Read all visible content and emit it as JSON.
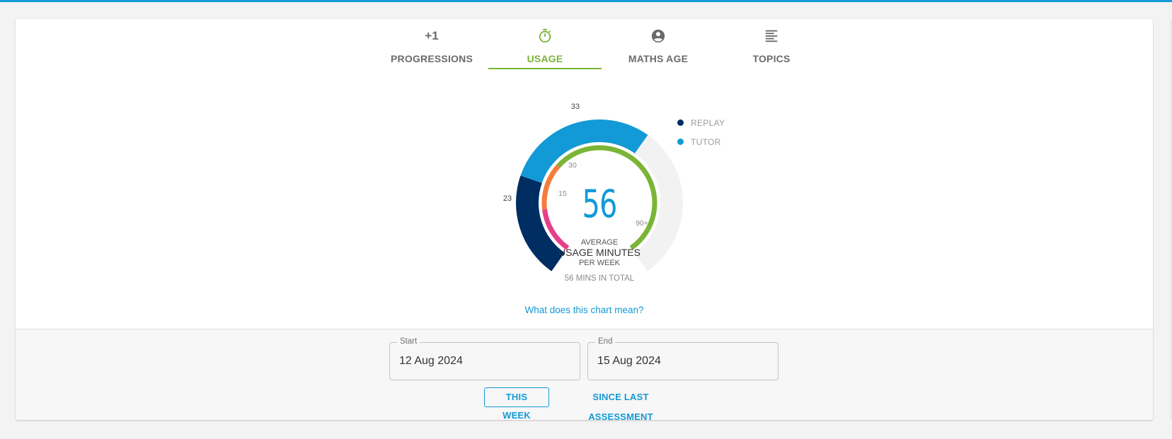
{
  "tabs": [
    {
      "label": "PROGRESSIONS",
      "icon": "plus-one-text",
      "icon_text": "+1",
      "active": false
    },
    {
      "label": "USAGE",
      "icon": "stopwatch-icon",
      "active": true
    },
    {
      "label": "MATHS AGE",
      "icon": "account-circle-icon",
      "active": false
    },
    {
      "label": "TOPICS",
      "icon": "text-lines-icon",
      "active": false
    }
  ],
  "gauge": {
    "center_value": "56",
    "caption_top": "AVERAGE",
    "caption_main": "USAGE MINUTES",
    "caption_sub": "PER WEEK",
    "total_text": "56 MINS IN TOTAL",
    "outer_labels": {
      "replay": "23",
      "tutor": "33"
    },
    "inner_labels": {
      "a": "15",
      "b": "30",
      "c": "90+"
    },
    "segments": {
      "replay_minutes": 23,
      "tutor_minutes": 33,
      "scale_max": 90
    }
  },
  "legend": [
    {
      "label": "REPLAY",
      "color": "#002d62"
    },
    {
      "label": "TUTOR",
      "color": "#129ad6"
    }
  ],
  "help_link": "What does this chart mean?",
  "date_range": {
    "start_label": "Start",
    "start_value": "12 Aug 2024",
    "end_label": "End",
    "end_value": "15 Aug 2024"
  },
  "buttons": {
    "this_week": "THIS WEEK",
    "since_last_assessment": "SINCE LAST ASSESSMENT"
  },
  "colors": {
    "accent_blue": "#129ad6",
    "navy": "#002d62",
    "green": "#7ab536",
    "orange": "#f47c3c",
    "pink": "#e83e8c",
    "track": "#f2f2f2"
  }
}
